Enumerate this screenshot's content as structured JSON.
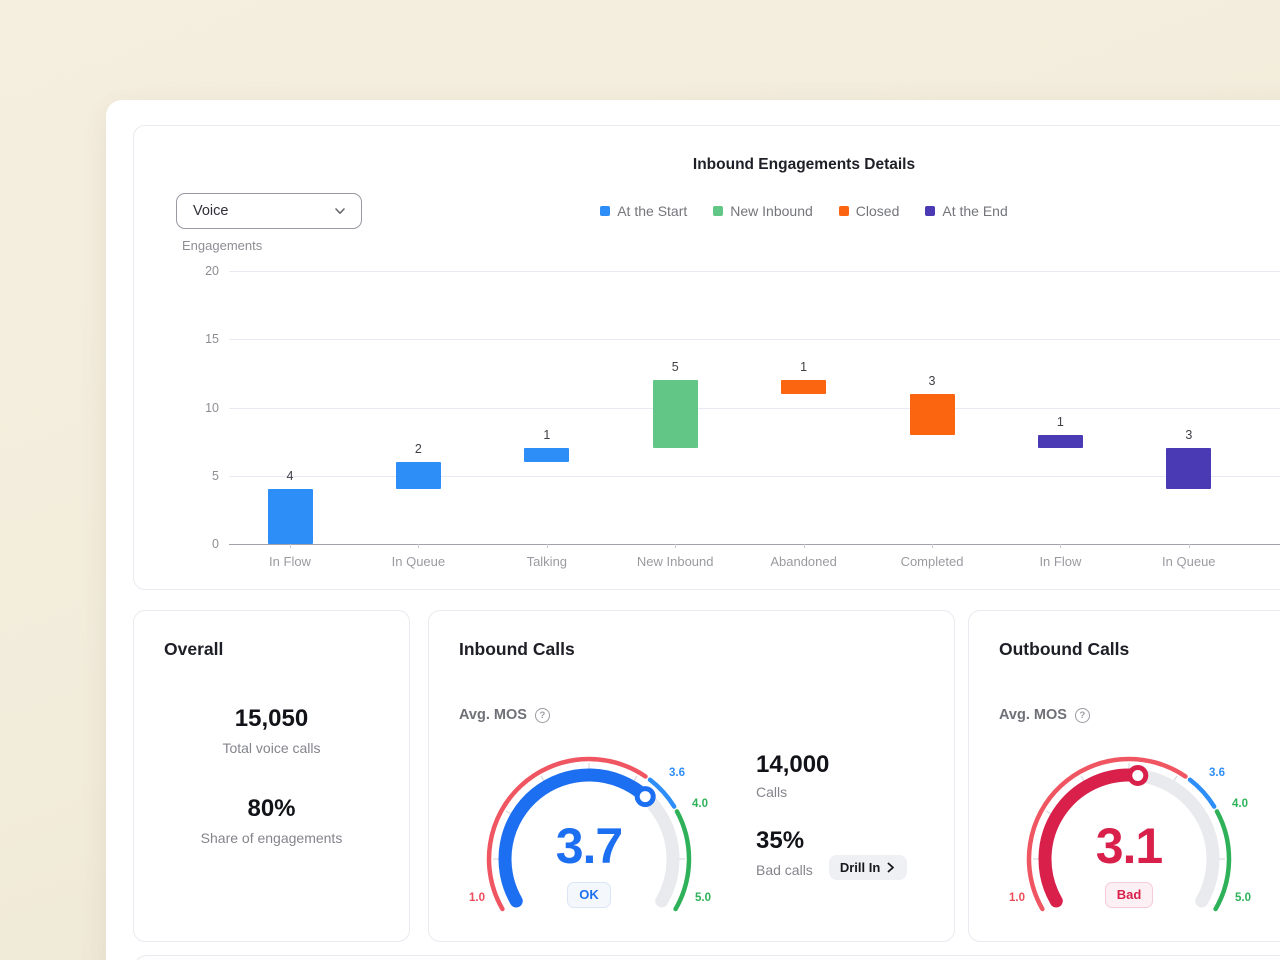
{
  "chart": {
    "title": "Inbound Engagements Details",
    "filter_value": "Voice",
    "ylabel": "Engagements",
    "legend": [
      {
        "label": "At the Start",
        "color": "#2E8EF7"
      },
      {
        "label": "New Inbound",
        "color": "#62C687"
      },
      {
        "label": "Closed",
        "color": "#FB6510"
      },
      {
        "label": "At the End",
        "color": "#4A3BB5"
      }
    ]
  },
  "chart_data": [
    {
      "type": "bar",
      "subtype": "floating-waterfall",
      "title": "Inbound Engagements Details",
      "ylabel": "Engagements",
      "ylim": [
        0,
        20
      ],
      "yticks": [
        0,
        5,
        10,
        15,
        20
      ],
      "grid": true,
      "legend_position": "top",
      "legend": [
        "At the Start",
        "New Inbound",
        "Closed",
        "At the End"
      ],
      "categories": [
        "In Flow",
        "In Queue",
        "Talking",
        "New Inbound",
        "Abandoned",
        "Completed",
        "In Flow",
        "In Queue"
      ],
      "bars": [
        {
          "category": "In Flow",
          "series": "At the Start",
          "value": 4,
          "start": 0,
          "end": 4,
          "color": "#2E8EF7"
        },
        {
          "category": "In Queue",
          "series": "At the Start",
          "value": 2,
          "start": 4,
          "end": 6,
          "color": "#2E8EF7"
        },
        {
          "category": "Talking",
          "series": "At the Start",
          "value": 1,
          "start": 6,
          "end": 7,
          "color": "#2E8EF7"
        },
        {
          "category": "New Inbound",
          "series": "New Inbound",
          "value": 5,
          "start": 7,
          "end": 12,
          "color": "#62C687"
        },
        {
          "category": "Abandoned",
          "series": "Closed",
          "value": 1,
          "start": 11,
          "end": 12,
          "color": "#FB6510"
        },
        {
          "category": "Completed",
          "series": "Closed",
          "value": 3,
          "start": 8,
          "end": 11,
          "color": "#FB6510"
        },
        {
          "category": "In Flow",
          "series": "At the End",
          "value": 1,
          "start": 7,
          "end": 8,
          "color": "#4A3BB5"
        },
        {
          "category": "In Queue",
          "series": "At the End",
          "value": 3,
          "start": 4,
          "end": 7,
          "color": "#4A3BB5"
        }
      ]
    },
    {
      "type": "gauge",
      "card": "Inbound Calls",
      "metric": "Avg. MOS",
      "value": 3.7,
      "status": "OK",
      "min": 1,
      "max": 5,
      "segments": [
        {
          "to": 3.6,
          "color": "#EF5661"
        },
        {
          "to": 4,
          "color": "#2E8EF7"
        },
        {
          "to": 5,
          "color": "#2EB158"
        }
      ],
      "tick_labels": [
        {
          "value": 1,
          "label": "1.0",
          "color": "#ED4B58"
        },
        {
          "value": 3.6,
          "label": "3.6",
          "color": "#2E8EF7"
        },
        {
          "value": 4,
          "label": "4.0",
          "color": "#2EB158"
        },
        {
          "value": 5,
          "label": "5.0",
          "color": "#2EB158"
        }
      ],
      "minor_ticks": [
        1.5,
        2,
        2.5,
        3,
        3.5,
        4.5
      ],
      "progress_color": "#1D6FF2",
      "track_color": "#E9EAEE"
    },
    {
      "type": "gauge",
      "card": "Outbound Calls",
      "metric": "Avg. MOS",
      "value": 3.1,
      "status": "Bad",
      "min": 1,
      "max": 5,
      "segments": [
        {
          "to": 3.6,
          "color": "#EF5661"
        },
        {
          "to": 4,
          "color": "#2E8EF7"
        },
        {
          "to": 5,
          "color": "#2EB158"
        }
      ],
      "tick_labels": [
        {
          "value": 1,
          "label": "1.0",
          "color": "#ED4B58"
        },
        {
          "value": 3.6,
          "label": "3.6",
          "color": "#2E8EF7"
        },
        {
          "value": 4,
          "label": "4.0",
          "color": "#2EB158"
        },
        {
          "value": 5,
          "label": "5.0",
          "color": "#2EB158"
        }
      ],
      "minor_ticks": [
        1.5,
        2,
        2.5,
        3,
        3.5,
        4.5
      ],
      "progress_color": "#D9204B",
      "track_color": "#E9EAEE"
    }
  ],
  "cards": {
    "overall": {
      "title": "Overall",
      "stats": [
        {
          "value": "15,050",
          "label": "Total voice calls"
        },
        {
          "value": "80%",
          "label": "Share of engagements"
        }
      ]
    },
    "inbound": {
      "title": "Inbound Calls",
      "metric_label": "Avg. MOS",
      "mos_value": "3.7",
      "mos_status": "OK",
      "stats": [
        {
          "value": "14,000",
          "label": "Calls"
        },
        {
          "value": "35%",
          "label": "Bad calls"
        }
      ],
      "drill_in_label": "Drill In"
    },
    "outbound": {
      "title": "Outbound Calls",
      "metric_label": "Avg. MOS",
      "mos_value": "3.1",
      "mos_status": "Bad"
    }
  }
}
